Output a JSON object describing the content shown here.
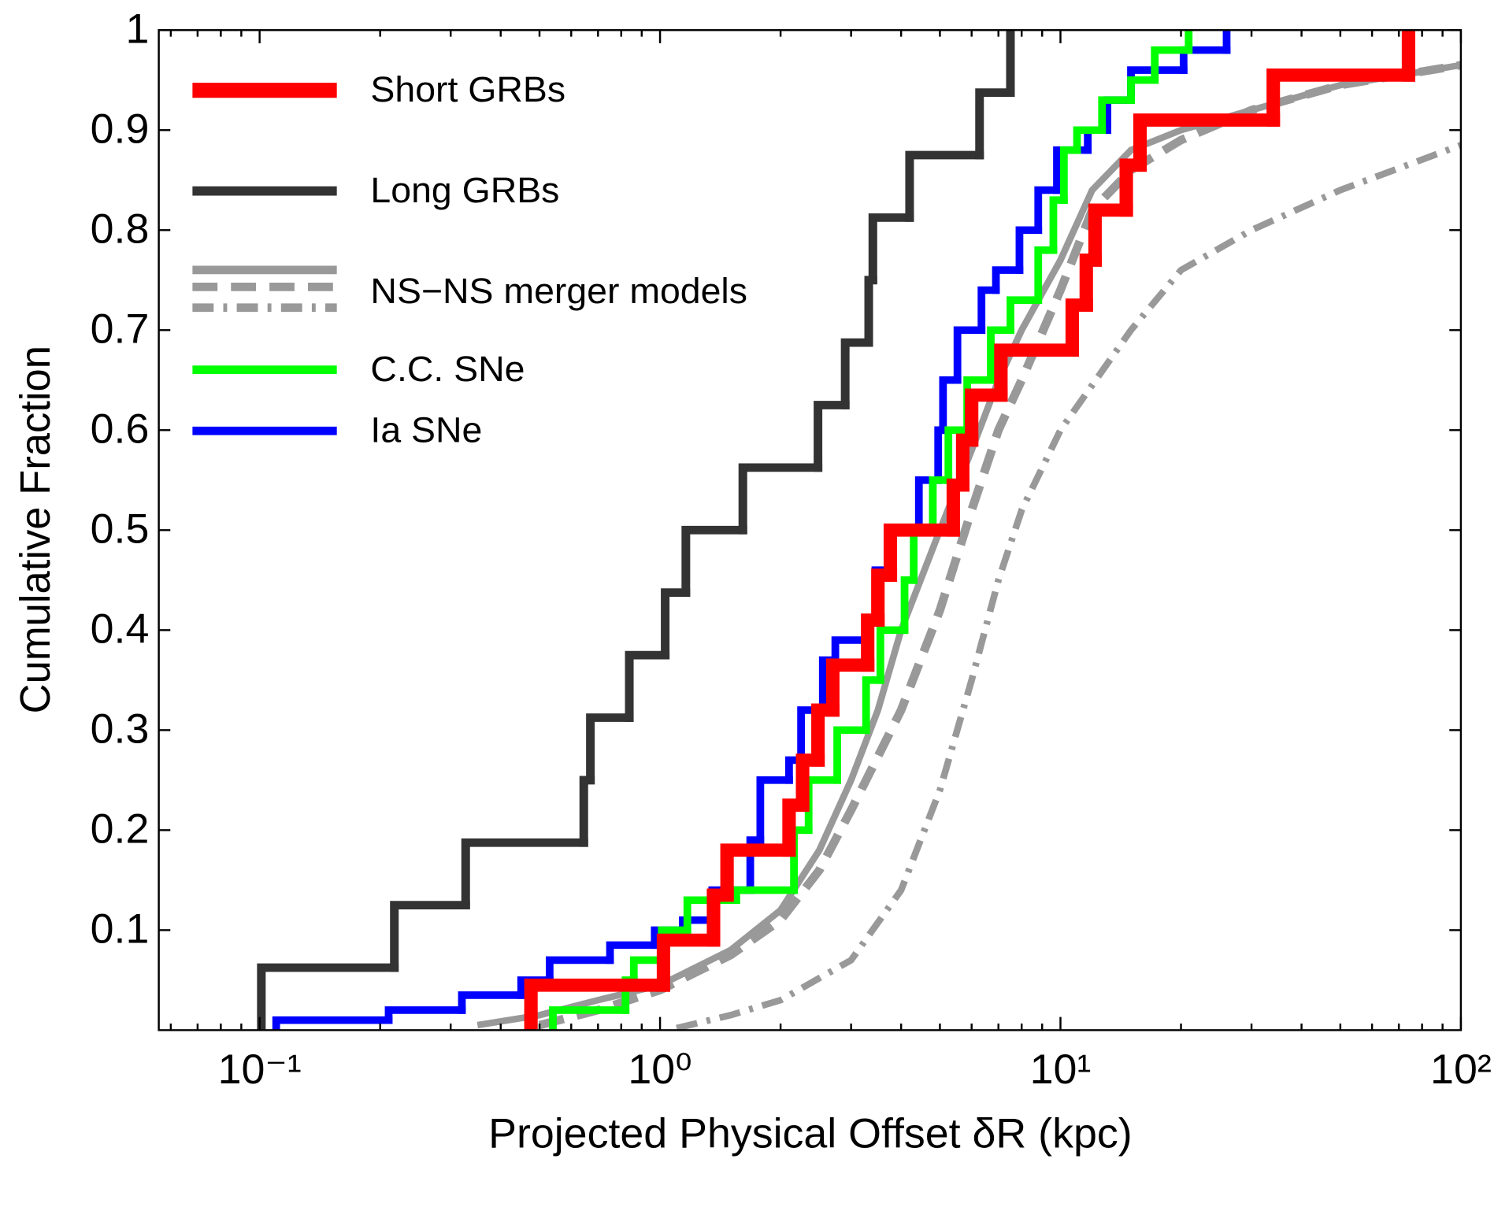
{
  "chart_data": {
    "type": "line",
    "xlabel": "Projected Physical Offset δR  (kpc)",
    "ylabel": "Cumulative Fraction",
    "xscale": "log",
    "xlim": [
      0.056,
      100
    ],
    "ylim": [
      0,
      1
    ],
    "xticks": [
      {
        "value": 0.1,
        "label": "10⁻¹"
      },
      {
        "value": 1,
        "label": "10⁰"
      },
      {
        "value": 10,
        "label": "10¹"
      },
      {
        "value": 100,
        "label": "10²"
      }
    ],
    "xminorticks": [
      0.06,
      0.07,
      0.08,
      0.09,
      0.2,
      0.3,
      0.4,
      0.5,
      0.6,
      0.7,
      0.8,
      0.9,
      2,
      3,
      4,
      5,
      6,
      7,
      8,
      9,
      20,
      30,
      40,
      50,
      60,
      70,
      80,
      90
    ],
    "yticks": [
      0.1,
      0.2,
      0.3,
      0.4,
      0.5,
      0.6,
      0.7,
      0.8,
      0.9,
      1
    ],
    "legend": "upper left",
    "models_label": "NS−NS merger models",
    "series": [
      {
        "name": "Short GRBs",
        "color": "#ff0000",
        "style": "steps",
        "x": [
          0.476,
          1.02,
          1.36,
          1.47,
          2.1,
          2.27,
          2.48,
          2.7,
          3.3,
          3.5,
          3.76,
          5.4,
          5.7,
          6.0,
          7.1,
          10.7,
          11.6,
          12.2,
          14.6,
          15.8,
          34,
          74
        ],
        "values": [
          0.045,
          0.09,
          0.135,
          0.18,
          0.225,
          0.27,
          0.32,
          0.365,
          0.41,
          0.455,
          0.5,
          0.545,
          0.59,
          0.635,
          0.68,
          0.725,
          0.77,
          0.82,
          0.865,
          0.91,
          0.955,
          1.0
        ]
      },
      {
        "name": "Long GRBs",
        "color": "#333333",
        "style": "steps",
        "x": [
          0.101,
          0.217,
          0.327,
          0.645,
          0.67,
          0.838,
          1.03,
          1.16,
          1.61,
          2.48,
          2.9,
          3.32,
          3.4,
          4.2,
          6.28,
          7.5
        ],
        "values": [
          0.0625,
          0.125,
          0.1875,
          0.25,
          0.3125,
          0.375,
          0.4375,
          0.5,
          0.5625,
          0.625,
          0.6875,
          0.75,
          0.8125,
          0.875,
          0.9375,
          1.0
        ]
      },
      {
        "color": "#999999",
        "style": "solid",
        "x": [
          0.35,
          0.5,
          0.7,
          1.0,
          1.5,
          2,
          2.5,
          3,
          3.5,
          4,
          5,
          6,
          7,
          8,
          10,
          12,
          15,
          20,
          30,
          50,
          100
        ],
        "values": [
          0.005,
          0.015,
          0.03,
          0.045,
          0.08,
          0.12,
          0.18,
          0.25,
          0.32,
          0.4,
          0.5,
          0.58,
          0.65,
          0.7,
          0.77,
          0.84,
          0.88,
          0.9,
          0.92,
          0.945,
          0.965
        ]
      },
      {
        "color": "#999999",
        "style": "dashed",
        "x": [
          0.5,
          0.7,
          1,
          1.5,
          2,
          2.5,
          3,
          4,
          5,
          6,
          7,
          8,
          10,
          12,
          15,
          20,
          30,
          50,
          100
        ],
        "values": [
          0.005,
          0.02,
          0.04,
          0.075,
          0.11,
          0.16,
          0.22,
          0.32,
          0.42,
          0.52,
          0.6,
          0.65,
          0.74,
          0.82,
          0.86,
          0.89,
          0.92,
          0.945,
          0.965
        ]
      },
      {
        "color": "#999999",
        "style": "dashdot",
        "x": [
          1.1,
          1.5,
          2,
          3,
          4,
          5,
          6,
          7,
          8,
          10,
          15,
          20,
          30,
          50,
          100
        ],
        "values": [
          0.002,
          0.015,
          0.03,
          0.07,
          0.14,
          0.24,
          0.35,
          0.45,
          0.52,
          0.6,
          0.7,
          0.76,
          0.8,
          0.84,
          0.885
        ]
      },
      {
        "name": "C.C. SNe",
        "color": "#00ff00",
        "style": "steps",
        "x": [
          0.54,
          0.82,
          0.86,
          1.01,
          1.17,
          1.55,
          2.16,
          2.35,
          2.77,
          3.27,
          3.55,
          4.08,
          4.3,
          4.8,
          5.25,
          5.85,
          6.7,
          7.5,
          8.8,
          9.6,
          10.2,
          11,
          12.7,
          15,
          17.2,
          20.9
        ],
        "values": [
          0.02,
          0.05,
          0.07,
          0.1,
          0.13,
          0.14,
          0.2,
          0.25,
          0.3,
          0.35,
          0.4,
          0.45,
          0.5,
          0.55,
          0.6,
          0.65,
          0.7,
          0.73,
          0.78,
          0.83,
          0.88,
          0.9,
          0.93,
          0.95,
          0.98,
          1.0
        ]
      },
      {
        "name": "Ia SNe",
        "color": "#0000ff",
        "style": "steps",
        "x": [
          0.11,
          0.21,
          0.32,
          0.45,
          0.53,
          0.75,
          0.97,
          1.14,
          1.35,
          1.68,
          1.78,
          2.1,
          2.25,
          2.55,
          2.74,
          3.27,
          3.45,
          3.76,
          4.43,
          4.95,
          5.09,
          5.53,
          6.35,
          6.9,
          7.9,
          8.8,
          9.8,
          11.7,
          13.1,
          15,
          20.3,
          26
        ],
        "values": [
          0.01,
          0.02,
          0.035,
          0.05,
          0.07,
          0.085,
          0.1,
          0.11,
          0.14,
          0.19,
          0.25,
          0.27,
          0.32,
          0.37,
          0.39,
          0.41,
          0.46,
          0.5,
          0.55,
          0.6,
          0.65,
          0.7,
          0.74,
          0.76,
          0.8,
          0.84,
          0.88,
          0.9,
          0.93,
          0.96,
          0.98,
          1.0
        ]
      }
    ]
  }
}
